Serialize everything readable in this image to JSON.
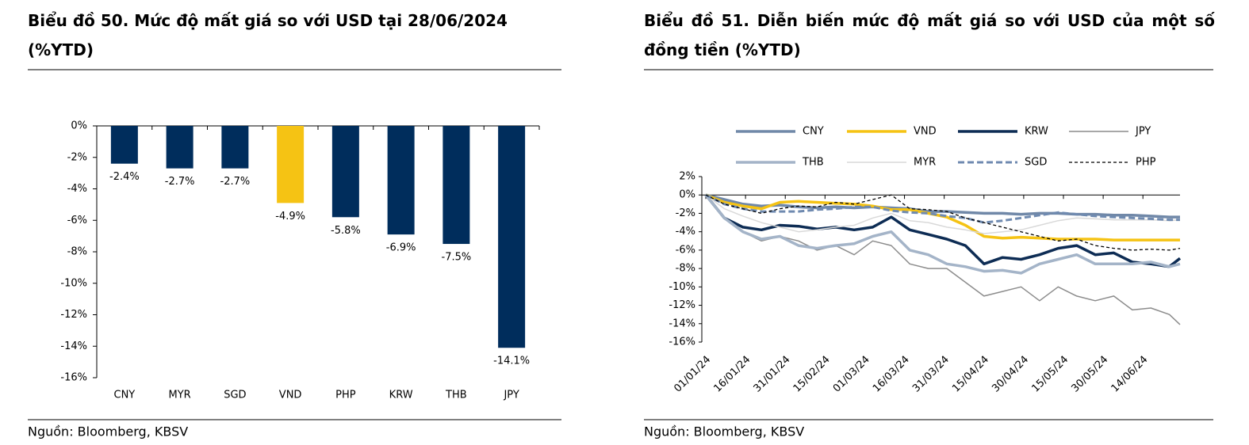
{
  "chart_data": [
    {
      "type": "bar",
      "title": "Biểu đồ 50. Mức độ mất giá so với USD tại 28/06/2024 (%YTD)",
      "source": "Nguồn:  Bloomberg, KBSV",
      "categories": [
        "CNY",
        "MYR",
        "SGD",
        "VND",
        "PHP",
        "KRW",
        "THB",
        "JPY"
      ],
      "values": [
        -2.4,
        -2.7,
        -2.7,
        -4.9,
        -5.8,
        -6.9,
        -7.5,
        -14.1
      ],
      "value_labels": [
        "-2.4%",
        "-2.7%",
        "-2.7%",
        "-4.9%",
        "-5.8%",
        "-6.9%",
        "-7.5%",
        "-14.1%"
      ],
      "colors": [
        "#002d5c",
        "#002d5c",
        "#002d5c",
        "#f5c314",
        "#002d5c",
        "#002d5c",
        "#002d5c",
        "#002d5c"
      ],
      "ylim": [
        -16,
        0
      ],
      "yticks": [
        {
          "value": 0,
          "label": "0%"
        },
        {
          "value": -2,
          "label": "-2%"
        },
        {
          "value": -4,
          "label": "-4%"
        },
        {
          "value": -6,
          "label": "-6%"
        },
        {
          "value": -8,
          "label": "-8%"
        },
        {
          "value": -10,
          "label": "-10%"
        },
        {
          "value": -12,
          "label": "-12%"
        },
        {
          "value": -14,
          "label": "-14%"
        },
        {
          "value": -16,
          "label": "-16%"
        }
      ]
    },
    {
      "type": "line",
      "title": "Biểu đồ 51. Diễn biến mức độ mất giá so với USD của một số đồng tiền (%YTD)",
      "source": "Nguồn:  Bloomberg, KBSV",
      "x": [
        "01/01/24",
        "08/01/24",
        "15/01/24",
        "22/01/24",
        "29/01/24",
        "05/02/24",
        "12/02/24",
        "19/02/24",
        "26/02/24",
        "04/03/24",
        "11/03/24",
        "18/03/24",
        "25/03/24",
        "01/04/24",
        "08/04/24",
        "15/04/24",
        "22/04/24",
        "29/04/24",
        "06/05/24",
        "13/05/24",
        "20/05/24",
        "27/05/24",
        "03/06/24",
        "10/06/24",
        "17/06/24",
        "24/06/24",
        "28/06/24"
      ],
      "xlim": [
        "01/01/24",
        "28/06/24"
      ],
      "xticks": [
        "01/01/24",
        "16/01/24",
        "31/01/24",
        "15/02/24",
        "01/03/24",
        "16/03/24",
        "31/03/24",
        "15/04/24",
        "30/04/24",
        "15/05/24",
        "30/05/24",
        "14/06/24"
      ],
      "ylim": [
        -16,
        2
      ],
      "yticks": [
        {
          "value": 2,
          "label": "2%"
        },
        {
          "value": 0,
          "label": "0%"
        },
        {
          "value": -2,
          "label": "-2%"
        },
        {
          "value": -4,
          "label": "-4%"
        },
        {
          "value": -6,
          "label": "-6%"
        },
        {
          "value": -8,
          "label": "-8%"
        },
        {
          "value": -10,
          "label": "-10%"
        },
        {
          "value": -12,
          "label": "-12%"
        },
        {
          "value": -14,
          "label": "-14%"
        },
        {
          "value": -16,
          "label": "-16%"
        }
      ],
      "series": [
        {
          "name": "CNY",
          "color": "#7088a8",
          "linewidth": 3.5,
          "dashed": false,
          "values": [
            0,
            -0.5,
            -1,
            -1.2,
            -1.1,
            -1.3,
            -1.4,
            -1.3,
            -1.4,
            -1.3,
            -1.4,
            -1.5,
            -1.8,
            -1.8,
            -1.9,
            -2,
            -2,
            -2.1,
            -2,
            -2,
            -2.1,
            -2.1,
            -2.2,
            -2.2,
            -2.3,
            -2.4,
            -2.4
          ]
        },
        {
          "name": "VND",
          "color": "#f5c314",
          "linewidth": 3.5,
          "dashed": false,
          "values": [
            0,
            -0.8,
            -1.2,
            -1.5,
            -0.8,
            -0.7,
            -0.8,
            -0.9,
            -1,
            -1.2,
            -1.6,
            -1.6,
            -2,
            -2.4,
            -3.3,
            -4.5,
            -4.7,
            -4.6,
            -4.7,
            -4.8,
            -4.8,
            -4.8,
            -4.9,
            -4.9,
            -4.9,
            -4.9,
            -4.9
          ]
        },
        {
          "name": "KRW",
          "color": "#0d2c54",
          "linewidth": 3.5,
          "dashed": false,
          "values": [
            0,
            -2.5,
            -3.5,
            -3.8,
            -3.3,
            -3.4,
            -3.7,
            -3.5,
            -3.8,
            -3.5,
            -2.4,
            -3.8,
            -4.3,
            -4.8,
            -5.5,
            -7.5,
            -6.8,
            -7,
            -6.5,
            -5.8,
            -5.5,
            -6.5,
            -6.3,
            -7.3,
            -7.5,
            -7.8,
            -6.9
          ]
        },
        {
          "name": "JPY",
          "color": "#8c8c8c",
          "linewidth": 1.5,
          "dashed": false,
          "values": [
            0,
            -2.5,
            -4,
            -5,
            -4.5,
            -5,
            -6,
            -5.5,
            -6.5,
            -5,
            -5.5,
            -7.5,
            -8,
            -8,
            -9.5,
            -11,
            -10.5,
            -10,
            -11.5,
            -10,
            -11,
            -11.5,
            -11,
            -12.5,
            -12.3,
            -13,
            -14.1
          ]
        },
        {
          "name": "THB",
          "color": "#a4b4c8",
          "linewidth": 3.5,
          "dashed": false,
          "values": [
            0,
            -2.5,
            -4,
            -4.8,
            -4.5,
            -5.5,
            -5.8,
            -5.5,
            -5.3,
            -4.5,
            -4,
            -6,
            -6.5,
            -7.5,
            -7.8,
            -8.3,
            -8.2,
            -8.5,
            -7.5,
            -7,
            -6.5,
            -7.5,
            -7.5,
            -7.5,
            -7.3,
            -7.8,
            -7.5
          ]
        },
        {
          "name": "MYR",
          "color": "#d9d9d9",
          "linewidth": 1.5,
          "dashed": false,
          "values": [
            0,
            -1.5,
            -2.3,
            -3,
            -3.5,
            -4,
            -3.8,
            -3.5,
            -3.3,
            -2.5,
            -2,
            -2.8,
            -3,
            -3.5,
            -3.8,
            -4.2,
            -4,
            -3.8,
            -3.3,
            -2.8,
            -2.5,
            -2.6,
            -2.7,
            -2.7,
            -2.7,
            -2.8,
            -2.7
          ]
        },
        {
          "name": "SGD",
          "color": "#6f8ab0",
          "linewidth": 3,
          "dashed": true,
          "values": [
            0,
            -1,
            -1.5,
            -1.8,
            -1.8,
            -1.8,
            -1.6,
            -1.5,
            -1.3,
            -1.3,
            -1.7,
            -1.9,
            -2,
            -2.3,
            -2.5,
            -3,
            -2.8,
            -2.5,
            -2.2,
            -1.9,
            -2.1,
            -2.3,
            -2.4,
            -2.5,
            -2.6,
            -2.7,
            -2.7
          ]
        },
        {
          "name": "PHP",
          "color": "#000000",
          "linewidth": 1.3,
          "dashed": true,
          "values": [
            0,
            -1,
            -1.5,
            -2,
            -1.5,
            -1.2,
            -1.3,
            -0.8,
            -1,
            -0.5,
            0,
            -1.5,
            -1.6,
            -1.8,
            -2.5,
            -3,
            -3.5,
            -4,
            -4.5,
            -5,
            -4.8,
            -5.5,
            -5.8,
            -6,
            -5.9,
            -6,
            -5.8
          ]
        }
      ]
    }
  ]
}
